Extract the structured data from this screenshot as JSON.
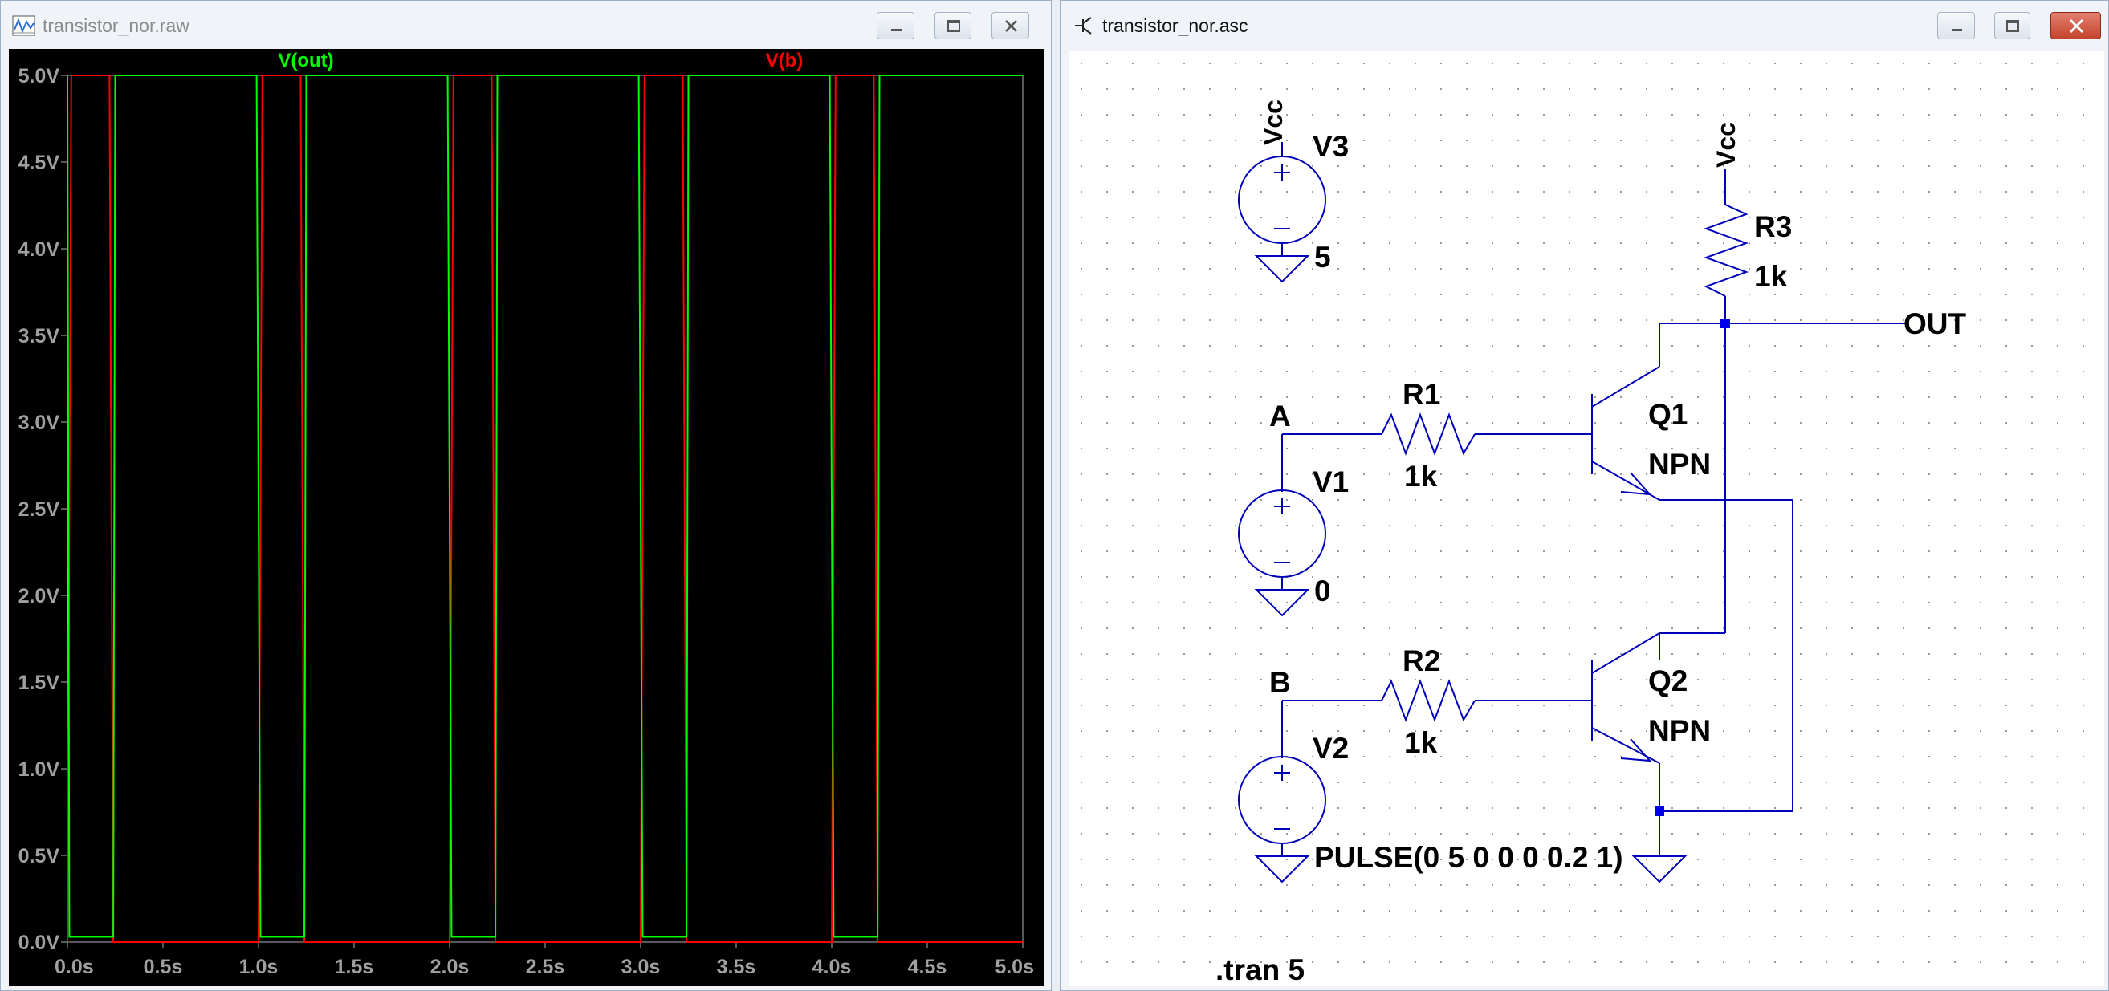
{
  "left_window": {
    "title": "transistor_nor.raw",
    "icon": "waveform-icon",
    "buttons": [
      "minimize-icon",
      "maximize-icon",
      "close-icon"
    ]
  },
  "right_window": {
    "title": "transistor_nor.asc",
    "icon": "schematic-icon",
    "buttons": [
      "minimize-icon",
      "maximize-icon",
      "close-icon"
    ]
  },
  "chart_data": {
    "type": "line",
    "title": "",
    "legend": [
      {
        "name": "V(out)",
        "color": "#00ff00"
      },
      {
        "name": "V(b)",
        "color": "#ff0000"
      }
    ],
    "x_ticks": [
      "0.0s",
      "0.5s",
      "1.0s",
      "1.5s",
      "2.0s",
      "2.5s",
      "3.0s",
      "3.5s",
      "4.0s",
      "4.5s",
      "5.0s"
    ],
    "y_ticks": [
      "0.0V",
      "0.5V",
      "1.0V",
      "1.5V",
      "2.0V",
      "2.5V",
      "3.0V",
      "3.5V",
      "4.0V",
      "4.5V",
      "5.0V"
    ],
    "xlim": [
      0,
      5
    ],
    "ylim": [
      0,
      5
    ],
    "grid": false,
    "series": [
      {
        "name": "V(out)",
        "color": "#00ff00",
        "x": [
          0,
          0.01,
          0.24,
          0.25,
          0.99,
          1.01,
          1.24,
          1.25,
          1.99,
          2.01,
          2.24,
          2.25,
          2.99,
          3.01,
          3.24,
          3.25,
          3.99,
          4.01,
          4.24,
          4.25,
          5.0
        ],
        "y": [
          5,
          0.03,
          0.03,
          5,
          5,
          0.03,
          0.03,
          5,
          5,
          0.03,
          0.03,
          5,
          5,
          0.03,
          0.03,
          5,
          5,
          0.03,
          0.03,
          5,
          5
        ]
      },
      {
        "name": "V(b)",
        "color": "#ff0000",
        "x": [
          0,
          0.02,
          0.22,
          0.24,
          1.0,
          1.02,
          1.22,
          1.24,
          2.0,
          2.02,
          2.22,
          2.24,
          3.0,
          3.02,
          3.22,
          3.24,
          4.0,
          4.02,
          4.22,
          4.24,
          5.0
        ],
        "y": [
          0,
          5,
          5,
          0,
          0,
          5,
          5,
          0,
          0,
          5,
          5,
          0,
          0,
          5,
          5,
          0,
          0,
          5,
          5,
          0,
          0
        ]
      }
    ]
  },
  "schematic": {
    "labels": {
      "vcc1": "Vcc",
      "v3": "V3",
      "v3_value": "5",
      "vcc2": "Vcc",
      "r3": "R3",
      "r3_value": "1k",
      "out": "OUT",
      "a": "A",
      "r1": "R1",
      "r1_value": "1k",
      "v1": "V1",
      "v1_value": "0",
      "q1": "Q1",
      "q1_model": "NPN",
      "b": "B",
      "r2": "R2",
      "r2_value": "1k",
      "v2": "V2",
      "v2_value": "PULSE(0 5 0 0 0 0.2 1)",
      "q2": "Q2",
      "q2_model": "NPN",
      "directive": ".tran 5"
    }
  }
}
